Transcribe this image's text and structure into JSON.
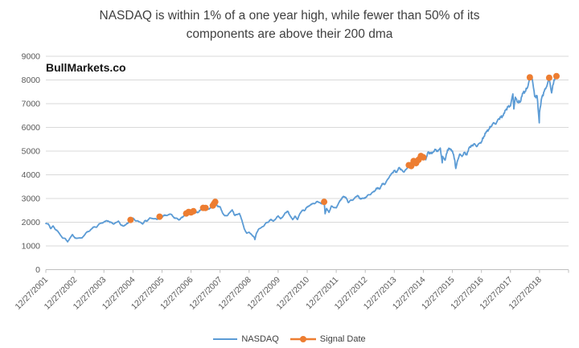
{
  "watermark": "BullMarkets.co",
  "chart_data": {
    "type": "line",
    "title_lines": [
      "NASDAQ is within 1% of a one year high, while fewer than 50% of its",
      "components are above their 200 dma"
    ],
    "x_start_label": "12/27/2001",
    "x_tick_labels": [
      "12/27/2001",
      "12/27/2002",
      "12/27/2003",
      "12/27/2004",
      "12/27/2005",
      "12/27/2006",
      "12/27/2007",
      "12/27/2008",
      "12/27/2009",
      "12/27/2010",
      "12/27/2011",
      "12/27/2012",
      "12/27/2013",
      "12/27/2014",
      "12/27/2015",
      "12/27/2016",
      "12/27/2017",
      "12/27/2018"
    ],
    "months_span": 216,
    "ylim": [
      0,
      9000
    ],
    "yticks": [
      0,
      1000,
      2000,
      3000,
      4000,
      5000,
      6000,
      7000,
      8000,
      9000
    ],
    "grid": true,
    "legend_position": "bottom",
    "colors": {
      "nasdaq": "#5B9BD5",
      "signal": "#ED7D31",
      "grid": "#D9D9D9",
      "axis": "#BFBFBF",
      "tick_text": "#595959",
      "title_text": "#3F3F3F"
    },
    "legend": [
      {
        "label": "NASDAQ"
      },
      {
        "label": "Signal Date"
      }
    ],
    "series": [
      {
        "name": "NASDAQ",
        "type": "line",
        "color_key": "nasdaq",
        "points": [
          [
            0,
            1950
          ],
          [
            1,
            1934
          ],
          [
            2,
            1731
          ],
          [
            3,
            1845
          ],
          [
            4,
            1688
          ],
          [
            5,
            1616
          ],
          [
            6,
            1463
          ],
          [
            7,
            1328
          ],
          [
            8,
            1315
          ],
          [
            9,
            1172
          ],
          [
            10,
            1330
          ],
          [
            11,
            1479
          ],
          [
            12,
            1336
          ],
          [
            13,
            1321
          ],
          [
            14,
            1338
          ],
          [
            15,
            1341
          ],
          [
            16,
            1464
          ],
          [
            17,
            1596
          ],
          [
            18,
            1623
          ],
          [
            19,
            1735
          ],
          [
            20,
            1810
          ],
          [
            21,
            1787
          ],
          [
            22,
            1932
          ],
          [
            23,
            1960
          ],
          [
            24,
            2003
          ],
          [
            25,
            2066
          ],
          [
            26,
            2030
          ],
          [
            27,
            1994
          ],
          [
            28,
            1920
          ],
          [
            29,
            1987
          ],
          [
            30,
            2048
          ],
          [
            31,
            1887
          ],
          [
            32,
            1838
          ],
          [
            33,
            1897
          ],
          [
            34,
            1975
          ],
          [
            35,
            2097
          ],
          [
            36,
            2175
          ],
          [
            37,
            2062
          ],
          [
            38,
            2052
          ],
          [
            39,
            1999
          ],
          [
            40,
            1922
          ],
          [
            41,
            2068
          ],
          [
            42,
            2057
          ],
          [
            43,
            2185
          ],
          [
            44,
            2152
          ],
          [
            45,
            2152
          ],
          [
            46,
            2120
          ],
          [
            47,
            2233
          ],
          [
            48,
            2205
          ],
          [
            49,
            2306
          ],
          [
            50,
            2281
          ],
          [
            51,
            2340
          ],
          [
            52,
            2323
          ],
          [
            53,
            2179
          ],
          [
            54,
            2172
          ],
          [
            55,
            2091
          ],
          [
            56,
            2184
          ],
          [
            57,
            2258
          ],
          [
            58,
            2367
          ],
          [
            59,
            2432
          ],
          [
            60,
            2415
          ],
          [
            61,
            2464
          ],
          [
            62,
            2416
          ],
          [
            63,
            2422
          ],
          [
            64,
            2525
          ],
          [
            65,
            2605
          ],
          [
            66,
            2603
          ],
          [
            67,
            2546
          ],
          [
            68,
            2596
          ],
          [
            69,
            2702
          ],
          [
            69.5,
            2780
          ],
          [
            70,
            2859
          ],
          [
            71,
            2661
          ],
          [
            72,
            2652
          ],
          [
            73,
            2390
          ],
          [
            74,
            2271
          ],
          [
            75,
            2279
          ],
          [
            76,
            2413
          ],
          [
            77,
            2523
          ],
          [
            78,
            2293
          ],
          [
            79,
            2326
          ],
          [
            80,
            2368
          ],
          [
            81,
            2092
          ],
          [
            82,
            1721
          ],
          [
            83,
            1536
          ],
          [
            84,
            1577
          ],
          [
            85,
            1476
          ],
          [
            86,
            1378
          ],
          [
            86.4,
            1269
          ],
          [
            87,
            1529
          ],
          [
            88,
            1717
          ],
          [
            89,
            1774
          ],
          [
            90,
            1835
          ],
          [
            91,
            1979
          ],
          [
            92,
            2009
          ],
          [
            93,
            2122
          ],
          [
            94,
            2045
          ],
          [
            95,
            2145
          ],
          [
            96,
            2269
          ],
          [
            97,
            2147
          ],
          [
            98,
            2238
          ],
          [
            99,
            2398
          ],
          [
            100,
            2461
          ],
          [
            101,
            2257
          ],
          [
            102,
            2109
          ],
          [
            103,
            2255
          ],
          [
            104,
            2114
          ],
          [
            105,
            2369
          ],
          [
            106,
            2507
          ],
          [
            107,
            2498
          ],
          [
            108,
            2653
          ],
          [
            109,
            2700
          ],
          [
            110,
            2782
          ],
          [
            111,
            2781
          ],
          [
            112,
            2874
          ],
          [
            113,
            2835
          ],
          [
            114,
            2774
          ],
          [
            115,
            2859
          ],
          [
            115.4,
            2358
          ],
          [
            116,
            2579
          ],
          [
            117,
            2415
          ],
          [
            118,
            2684
          ],
          [
            119,
            2620
          ],
          [
            120,
            2605
          ],
          [
            121,
            2814
          ],
          [
            122,
            2967
          ],
          [
            123,
            3092
          ],
          [
            124,
            3046
          ],
          [
            125,
            2827
          ],
          [
            126,
            2935
          ],
          [
            127,
            2940
          ],
          [
            128,
            3067
          ],
          [
            129,
            3116
          ],
          [
            130,
            2977
          ],
          [
            131,
            3010
          ],
          [
            132,
            3020
          ],
          [
            133,
            3142
          ],
          [
            134,
            3160
          ],
          [
            135,
            3268
          ],
          [
            136,
            3329
          ],
          [
            137,
            3456
          ],
          [
            138,
            3403
          ],
          [
            139,
            3626
          ],
          [
            140,
            3590
          ],
          [
            141,
            3771
          ],
          [
            142,
            3920
          ],
          [
            143,
            4060
          ],
          [
            144,
            4177
          ],
          [
            145,
            4104
          ],
          [
            146,
            4308
          ],
          [
            147,
            4199
          ],
          [
            148,
            4115
          ],
          [
            149,
            4243
          ],
          [
            150,
            4408
          ],
          [
            151,
            4370
          ],
          [
            152,
            4580
          ],
          [
            153,
            4493
          ],
          [
            154,
            4631
          ],
          [
            155,
            4792
          ],
          [
            156,
            4736
          ],
          [
            157,
            4635
          ],
          [
            158,
            4964
          ],
          [
            159,
            4901
          ],
          [
            160,
            4941
          ],
          [
            161,
            5070
          ],
          [
            162,
            4987
          ],
          [
            163,
            5128
          ],
          [
            163.8,
            4506
          ],
          [
            164,
            4777
          ],
          [
            165,
            4620
          ],
          [
            166,
            5054
          ],
          [
            167,
            5109
          ],
          [
            168,
            5007
          ],
          [
            169,
            4614
          ],
          [
            169.4,
            4267
          ],
          [
            170,
            4558
          ],
          [
            171,
            4870
          ],
          [
            172,
            4775
          ],
          [
            173,
            4948
          ],
          [
            174,
            4843
          ],
          [
            175,
            5162
          ],
          [
            176,
            5213
          ],
          [
            177,
            5312
          ],
          [
            178,
            5189
          ],
          [
            179,
            5324
          ],
          [
            180,
            5383
          ],
          [
            181,
            5615
          ],
          [
            182,
            5825
          ],
          [
            183,
            5912
          ],
          [
            184,
            6048
          ],
          [
            185,
            6199
          ],
          [
            186,
            6140
          ],
          [
            187,
            6348
          ],
          [
            188,
            6429
          ],
          [
            189,
            6496
          ],
          [
            190,
            6728
          ],
          [
            191,
            6874
          ],
          [
            192,
            6903
          ],
          [
            193,
            7411
          ],
          [
            193.4,
            6777
          ],
          [
            194,
            7273
          ],
          [
            195,
            7063
          ],
          [
            196,
            7066
          ],
          [
            197,
            7442
          ],
          [
            198,
            7510
          ],
          [
            199,
            7672
          ],
          [
            200,
            8110
          ],
          [
            201,
            8046
          ],
          [
            202,
            7306
          ],
          [
            203,
            7331
          ],
          [
            203.9,
            6193
          ],
          [
            204,
            6635
          ],
          [
            205,
            7282
          ],
          [
            206,
            7533
          ],
          [
            207,
            7729
          ],
          [
            208,
            8095
          ],
          [
            209,
            7453
          ],
          [
            210,
            8006
          ],
          [
            211,
            8161
          ],
          [
            212,
            8175
          ]
        ]
      },
      {
        "name": "Signal Date",
        "type": "scatter-line",
        "color_key": "signal",
        "points": [
          [
            35,
            2097
          ],
          [
            47,
            2233
          ],
          [
            58,
            2367
          ],
          [
            59,
            2432
          ],
          [
            60,
            2415
          ],
          [
            61,
            2464
          ],
          [
            65,
            2605
          ],
          [
            66,
            2603
          ],
          [
            69,
            2702
          ],
          [
            69.5,
            2780
          ],
          [
            70,
            2859
          ],
          [
            115,
            2859
          ],
          [
            150,
            4408
          ],
          [
            151,
            4370
          ],
          [
            152,
            4580
          ],
          [
            153,
            4493
          ],
          [
            154,
            4631
          ],
          [
            155,
            4792
          ],
          [
            156,
            4736
          ],
          [
            200,
            8110
          ],
          [
            208,
            8095
          ],
          [
            211,
            8161
          ]
        ]
      }
    ]
  }
}
